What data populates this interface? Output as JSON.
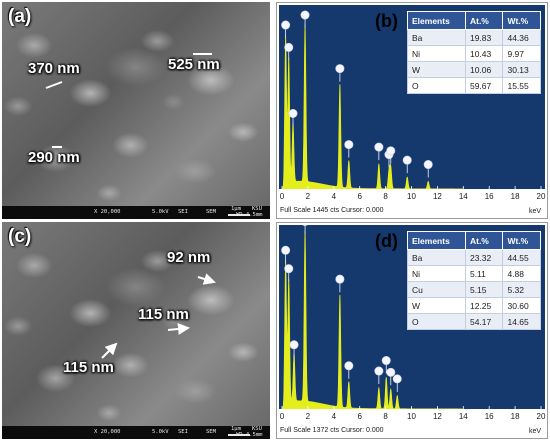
{
  "panels": {
    "a": {
      "label": "(a)",
      "annotations": [
        "370 nm",
        "525 nm",
        "290 nm"
      ],
      "info_bar": {
        "mag": "X 20,000",
        "kv": "5.0kV",
        "mode": "SEI",
        "det": "SEM",
        "scale": "1μm",
        "lab": "KSU",
        "wd": "WD 4.5mm"
      }
    },
    "b": {
      "label": "(b)",
      "footer": "Full Scale 1445 cts Cursor: 0.000",
      "unit": "keV",
      "table": {
        "headers": [
          "Elements",
          "At.%",
          "Wt.%"
        ],
        "rows": [
          [
            "Ba",
            "19.83",
            "44.36"
          ],
          [
            "Ni",
            "10.43",
            "9.97"
          ],
          [
            "W",
            "10.06",
            "30.13"
          ],
          [
            "O",
            "59.67",
            "15.55"
          ]
        ]
      }
    },
    "c": {
      "label": "(c)",
      "annotations": [
        "92 nm",
        "115 nm",
        "115 nm"
      ],
      "info_bar": {
        "mag": "X 20,000",
        "kv": "5.0kV",
        "mode": "SEI",
        "det": "SEM",
        "scale": "1μm",
        "lab": "KSU",
        "wd": "WD 4.5mm"
      }
    },
    "d": {
      "label": "(d)",
      "footer": "Full Scale 1372 cts Cursor: 0.000",
      "unit": "keV",
      "table": {
        "headers": [
          "Elements",
          "At.%",
          "Wt.%"
        ],
        "rows": [
          [
            "Ba",
            "23.32",
            "44.55"
          ],
          [
            "Ni",
            "5.11",
            "4.88"
          ],
          [
            "Cu",
            "5.15",
            "5.32"
          ],
          [
            "W",
            "12.25",
            "30.60"
          ],
          [
            "O",
            "54.17",
            "14.65"
          ]
        ]
      }
    }
  },
  "chart_data": [
    {
      "panel": "b",
      "type": "line",
      "xlim": [
        0,
        20
      ],
      "ylim": [
        0,
        1445
      ],
      "x_ticks": [
        0,
        2,
        4,
        6,
        8,
        10,
        12,
        14,
        16,
        18,
        20
      ],
      "xlabel": "keV",
      "peaks": [
        {
          "x": 0.28,
          "y": 1180
        },
        {
          "x": 0.52,
          "y": 1000
        },
        {
          "x": 0.85,
          "y": 470
        },
        {
          "x": 1.78,
          "y": 1260
        },
        {
          "x": 4.47,
          "y": 830
        },
        {
          "x": 5.16,
          "y": 220
        },
        {
          "x": 7.48,
          "y": 200
        },
        {
          "x": 8.26,
          "y": 140
        },
        {
          "x": 8.4,
          "y": 170
        },
        {
          "x": 9.67,
          "y": 95
        },
        {
          "x": 11.29,
          "y": 60
        }
      ],
      "color": "#e5ee1d"
    },
    {
      "panel": "d",
      "type": "line",
      "xlim": [
        0,
        20
      ],
      "ylim": [
        0,
        1372
      ],
      "x_ticks": [
        0,
        2,
        4,
        6,
        8,
        10,
        12,
        14,
        16,
        18,
        20
      ],
      "xlabel": "keV",
      "peaks": [
        {
          "x": 0.28,
          "y": 1080
        },
        {
          "x": 0.52,
          "y": 940
        },
        {
          "x": 0.93,
          "y": 360
        },
        {
          "x": 1.78,
          "y": 1300
        },
        {
          "x": 4.47,
          "y": 860
        },
        {
          "x": 5.16,
          "y": 200
        },
        {
          "x": 7.48,
          "y": 160
        },
        {
          "x": 8.05,
          "y": 240
        },
        {
          "x": 8.4,
          "y": 150
        },
        {
          "x": 8.9,
          "y": 100
        }
      ],
      "color": "#e5ee1d"
    }
  ]
}
